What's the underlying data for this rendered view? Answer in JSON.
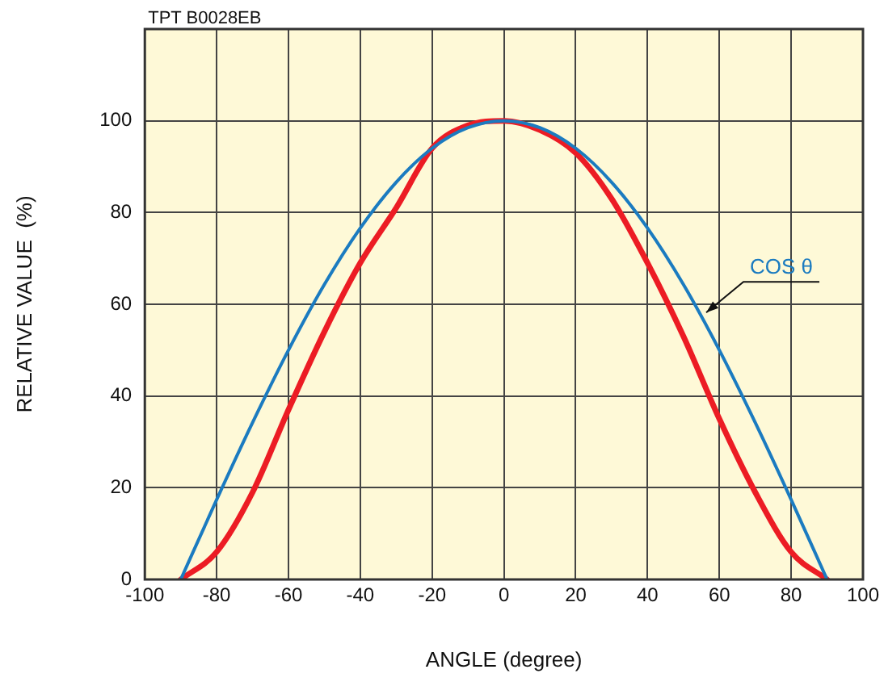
{
  "chart_data": {
    "type": "line",
    "xlabel": "ANGLE (degree)",
    "ylabel": "RELATIVE VALUE  (%)",
    "annotations": [
      "TPT B0028EB"
    ],
    "x": [
      -90,
      -80,
      -70,
      -60,
      -50,
      -40,
      -30,
      -20,
      -10,
      0,
      10,
      20,
      30,
      40,
      50,
      60,
      70,
      80,
      90
    ],
    "series": [
      {
        "name": "COS θ",
        "color": "#1b7bc0",
        "values": [
          0,
          17.4,
          34.2,
          50,
          64.3,
          76.6,
          86.6,
          94,
          98.5,
          100,
          98.5,
          94,
          86.6,
          76.6,
          64.3,
          50,
          34.2,
          17.4,
          0
        ]
      },
      {
        "color": "#ec1c24",
        "values": [
          0,
          6,
          19,
          37,
          54,
          69,
          81,
          94,
          99,
          100,
          98,
          93,
          83,
          69,
          53,
          35,
          19,
          6,
          0
        ]
      }
    ],
    "xlim": [
      -100,
      100
    ],
    "xticks": [
      -100,
      -80,
      -60,
      -40,
      -20,
      0,
      20,
      40,
      60,
      80,
      100
    ],
    "ylim": [
      0,
      120
    ],
    "yticks": [
      0,
      20,
      40,
      60,
      80,
      100
    ],
    "grid": true,
    "legend": false,
    "marker": "none",
    "line_style": "solid"
  }
}
